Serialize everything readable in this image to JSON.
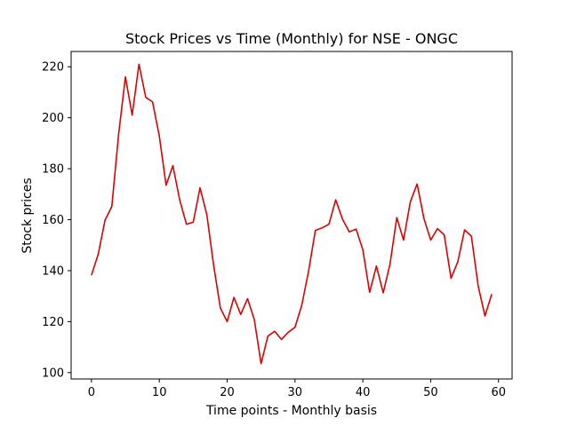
{
  "chart_data": {
    "type": "line",
    "title": "Stock Prices vs Time (Monthly) for NSE - ONGC",
    "xlabel": "Time points - Monthly basis",
    "ylabel": "Stock prices",
    "xlim": [
      -3,
      62
    ],
    "ylim": [
      97.5,
      226
    ],
    "x_ticks": [
      0,
      10,
      20,
      30,
      40,
      50,
      60
    ],
    "x_tick_labels": [
      "0",
      "10",
      "20",
      "30",
      "40",
      "50",
      "60"
    ],
    "y_ticks": [
      100,
      120,
      140,
      160,
      180,
      200,
      220
    ],
    "y_tick_labels": [
      "100",
      "120",
      "140",
      "160",
      "180",
      "200",
      "220"
    ],
    "grid": false,
    "series": [
      {
        "color": "#e00000",
        "x": [
          0,
          1,
          2,
          3,
          4,
          5,
          6,
          7,
          8,
          9,
          10,
          11,
          12,
          13,
          14,
          15,
          16,
          17,
          18,
          19,
          20,
          21,
          22,
          23,
          24,
          25,
          26,
          27,
          28,
          29,
          30,
          31,
          32,
          33,
          34,
          35,
          36,
          37,
          38,
          39,
          40,
          41,
          42,
          43,
          44,
          45,
          46,
          47,
          48,
          49,
          50,
          51,
          52,
          53,
          54,
          55,
          56,
          57,
          58,
          59
        ],
        "values": [
          138.2,
          146.5,
          159.8,
          165.2,
          193.5,
          216.0,
          201.0,
          221.0,
          208.0,
          206.2,
          192.8,
          173.5,
          181.2,
          167.8,
          158.2,
          159.0,
          172.5,
          162.0,
          142.2,
          125.3,
          120.0,
          129.5,
          122.8,
          129.0,
          120.8,
          103.5,
          114.3,
          116.2,
          113.0,
          115.8,
          117.8,
          126.5,
          139.8,
          155.8,
          156.8,
          158.2,
          167.8,
          160.2,
          155.2,
          156.3,
          148.2,
          131.5,
          141.8,
          131.3,
          142.5,
          160.8,
          152.0,
          167.0,
          174.0,
          160.5,
          152.0,
          156.5,
          154.0,
          137.0,
          143.5,
          156.0,
          153.5,
          134.0,
          122.2,
          130.8
        ]
      }
    ]
  }
}
